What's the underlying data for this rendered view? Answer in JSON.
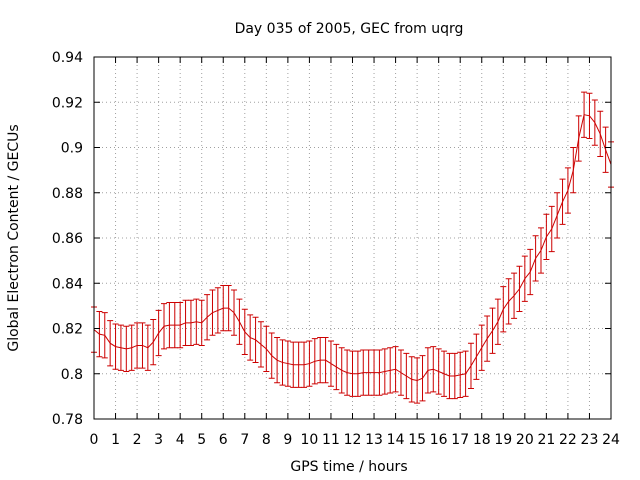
{
  "chart_data": {
    "type": "line",
    "title": "Day 035 of 2005, GEC from uqrg",
    "xlabel": "GPS time / hours",
    "ylabel": "Global Electron Content / GECUs",
    "xlim": [
      0,
      24
    ],
    "ylim": [
      0.78,
      0.94
    ],
    "xticks": [
      0,
      1,
      2,
      3,
      4,
      5,
      6,
      7,
      8,
      9,
      10,
      11,
      12,
      13,
      14,
      15,
      16,
      17,
      18,
      19,
      20,
      21,
      22,
      23,
      24
    ],
    "xtick_labels": [
      "0",
      "1",
      "2",
      "3",
      "4",
      "5",
      "6",
      "7",
      "8",
      "9",
      "10",
      "11",
      "12",
      "13",
      "14",
      "15",
      "16",
      "17",
      "18",
      "19",
      "20",
      "21",
      "22",
      "23",
      "24"
    ],
    "yticks": [
      0.78,
      0.8,
      0.82,
      0.84,
      0.86,
      0.88,
      0.9,
      0.92,
      0.94
    ],
    "ytick_labels": [
      "0.78",
      "0.8",
      "0.82",
      "0.84",
      "0.86",
      "0.88",
      "0.9",
      "0.92",
      "0.94"
    ],
    "grid": true,
    "color": "#cc0000",
    "series": [
      {
        "name": "GEC",
        "x": [
          0.0,
          0.25,
          0.5,
          0.75,
          1.0,
          1.25,
          1.5,
          1.75,
          2.0,
          2.25,
          2.5,
          2.75,
          3.0,
          3.25,
          3.5,
          3.75,
          4.0,
          4.25,
          4.5,
          4.75,
          5.0,
          5.25,
          5.5,
          5.75,
          6.0,
          6.25,
          6.5,
          6.75,
          7.0,
          7.25,
          7.5,
          7.75,
          8.0,
          8.25,
          8.5,
          8.75,
          9.0,
          9.25,
          9.5,
          9.75,
          10.0,
          10.25,
          10.5,
          10.75,
          11.0,
          11.25,
          11.5,
          11.75,
          12.0,
          12.25,
          12.5,
          12.75,
          13.0,
          13.25,
          13.5,
          13.75,
          14.0,
          14.25,
          14.5,
          14.75,
          15.0,
          15.25,
          15.5,
          15.75,
          16.0,
          16.25,
          16.5,
          16.75,
          17.0,
          17.25,
          17.5,
          17.75,
          18.0,
          18.25,
          18.5,
          18.75,
          19.0,
          19.25,
          19.5,
          19.75,
          20.0,
          20.25,
          20.5,
          20.75,
          21.0,
          21.25,
          21.5,
          21.75,
          22.0,
          22.25,
          22.5,
          22.75,
          23.0,
          23.25,
          23.5,
          23.75,
          24.0
        ],
        "y": [
          0.8195,
          0.8175,
          0.817,
          0.8135,
          0.812,
          0.8115,
          0.811,
          0.8115,
          0.8125,
          0.8125,
          0.8115,
          0.814,
          0.818,
          0.821,
          0.8215,
          0.8215,
          0.8215,
          0.8225,
          0.8225,
          0.823,
          0.8225,
          0.825,
          0.827,
          0.828,
          0.829,
          0.829,
          0.827,
          0.823,
          0.8185,
          0.816,
          0.815,
          0.813,
          0.811,
          0.808,
          0.806,
          0.805,
          0.8045,
          0.804,
          0.804,
          0.804,
          0.8045,
          0.8055,
          0.806,
          0.806,
          0.8045,
          0.803,
          0.8015,
          0.8005,
          0.8,
          0.8,
          0.8005,
          0.8005,
          0.8005,
          0.8005,
          0.801,
          0.8015,
          0.802,
          0.8005,
          0.799,
          0.7975,
          0.797,
          0.798,
          0.8015,
          0.802,
          0.801,
          0.8,
          0.799,
          0.799,
          0.7995,
          0.8,
          0.8035,
          0.8075,
          0.8115,
          0.8155,
          0.819,
          0.823,
          0.8285,
          0.832,
          0.8345,
          0.8375,
          0.842,
          0.845,
          0.851,
          0.8545,
          0.8605,
          0.864,
          0.87,
          0.876,
          0.881,
          0.89,
          0.904,
          0.9145,
          0.914,
          0.911,
          0.906,
          0.899,
          0.8925
        ],
        "error": [
          0.01,
          0.01,
          0.01,
          0.01,
          0.01,
          0.01,
          0.01,
          0.01,
          0.01,
          0.01,
          0.01,
          0.01,
          0.01,
          0.01,
          0.01,
          0.01,
          0.01,
          0.01,
          0.01,
          0.01,
          0.01,
          0.01,
          0.01,
          0.01,
          0.01,
          0.01,
          0.01,
          0.01,
          0.01,
          0.01,
          0.01,
          0.01,
          0.01,
          0.01,
          0.01,
          0.01,
          0.01,
          0.01,
          0.01,
          0.01,
          0.01,
          0.01,
          0.01,
          0.01,
          0.01,
          0.01,
          0.01,
          0.01,
          0.01,
          0.01,
          0.01,
          0.01,
          0.01,
          0.01,
          0.01,
          0.01,
          0.01,
          0.01,
          0.01,
          0.01,
          0.01,
          0.01,
          0.01,
          0.01,
          0.01,
          0.01,
          0.01,
          0.01,
          0.01,
          0.01,
          0.01,
          0.01,
          0.01,
          0.01,
          0.01,
          0.01,
          0.01,
          0.01,
          0.01,
          0.01,
          0.01,
          0.01,
          0.01,
          0.01,
          0.01,
          0.01,
          0.01,
          0.01,
          0.01,
          0.01,
          0.01,
          0.01,
          0.01,
          0.01,
          0.01,
          0.01,
          0.01
        ]
      }
    ]
  }
}
